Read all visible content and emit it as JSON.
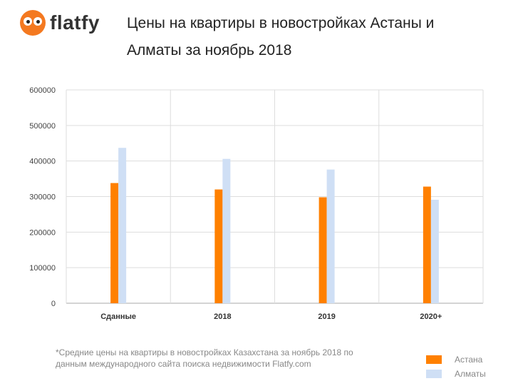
{
  "brand": {
    "name": "flatfy",
    "color": "#f47920"
  },
  "title": "Цены на квартиры в новостройках Астаны и Алматы за ноябрь 2018",
  "footnote": "*Средние цены на квартиры в новостройках Казахстана за ноябрь 2018 по данным международного сайта поиска недвижимости Flatfy.com",
  "chart_data": {
    "type": "bar",
    "categories": [
      "Сданные",
      "2018",
      "2019",
      "2020+"
    ],
    "series": [
      {
        "name": "Астана",
        "color": "#ff8000",
        "values": [
          338000,
          320000,
          298000,
          328000
        ]
      },
      {
        "name": "Алматы",
        "color": "#cfdff5",
        "values": [
          437000,
          406000,
          376000,
          291000
        ]
      }
    ],
    "y_ticks": [
      0,
      100000,
      200000,
      300000,
      400000,
      500000,
      600000
    ],
    "ylim": [
      0,
      600000
    ],
    "grid": true,
    "legend_position": "bottom-right"
  }
}
